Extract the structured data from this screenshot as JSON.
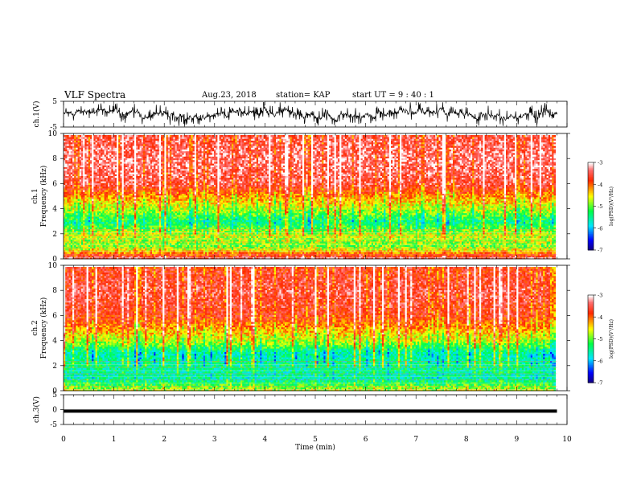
{
  "header": {
    "title": "VLF Spectra",
    "date": "Aug.23, 2018",
    "station": "station= KAP",
    "start": "start  UT  =   9 : 40 : 1"
  },
  "chart_data": [
    {
      "type": "line",
      "name": "ch1-waveform",
      "ylabel": "ch.1(V)",
      "ylim": [
        -5,
        5
      ],
      "yticks": [
        "5",
        "-5"
      ],
      "xlim": [
        0,
        10
      ],
      "data_end_min": 9.8,
      "description_values": "dense waveform oscillating roughly between -4 and +4 V"
    },
    {
      "type": "heatmap",
      "name": "ch1-spectrogram",
      "ylabel_line1": "ch.1",
      "ylabel_line2": "Frequency  (kHz)",
      "ylim": [
        0,
        10
      ],
      "yticks": [
        "0",
        "2",
        "4",
        "6",
        "8",
        "10"
      ],
      "colorbar": {
        "label": "log(PSD)(V²/Hz)",
        "range": [
          -7,
          -3
        ],
        "ticks": [
          "-3",
          "-4",
          "-5",
          "-6",
          "-7"
        ]
      },
      "levels_by_freq_kHz": [
        {
          "f": 0,
          "v": -3.3
        },
        {
          "f": 1,
          "v": -4.9
        },
        {
          "f": 2,
          "v": -4.6
        },
        {
          "f": 3,
          "v": -5.4
        },
        {
          "f": 4,
          "v": -4.7
        },
        {
          "f": 5,
          "v": -4.2
        },
        {
          "f": 6,
          "v": -3.5
        },
        {
          "f": 8,
          "v": -3.3
        },
        {
          "f": 10,
          "v": -3.5
        }
      ]
    },
    {
      "type": "heatmap",
      "name": "ch2-spectrogram",
      "ylabel_line1": "ch.2",
      "ylabel_line2": "Frequency  (kHz)",
      "ylim": [
        0,
        10
      ],
      "yticks": [
        "0",
        "2",
        "4",
        "6",
        "8",
        "10"
      ],
      "colorbar": {
        "label": "log(PSD)(V²/Hz)",
        "range": [
          -7,
          -3
        ],
        "ticks": [
          "-3",
          "-4",
          "-5",
          "-6",
          "-7"
        ]
      },
      "levels_by_freq_kHz": [
        {
          "f": 0,
          "v": -4.6
        },
        {
          "f": 1,
          "v": -5.6
        },
        {
          "f": 2,
          "v": -5.4
        },
        {
          "f": 3,
          "v": -5.6
        },
        {
          "f": 4,
          "v": -4.7
        },
        {
          "f": 5,
          "v": -4.2
        },
        {
          "f": 6,
          "v": -3.7
        },
        {
          "f": 8,
          "v": -3.5
        },
        {
          "f": 10,
          "v": -3.7
        }
      ]
    },
    {
      "type": "line",
      "name": "ch3-waveform",
      "ylabel": "ch.3(V)",
      "ylim": [
        -5,
        5
      ],
      "yticks": [
        "5",
        "0",
        "-5"
      ],
      "values_V": -0.5,
      "xlim": [
        0,
        10
      ]
    }
  ],
  "xaxis": {
    "label": "Time  (min)",
    "ticks": [
      "0",
      "1",
      "2",
      "3",
      "4",
      "5",
      "6",
      "7",
      "8",
      "9",
      "10"
    ],
    "range": [
      0,
      10
    ]
  },
  "colors": {
    "ink": "#000000",
    "colormap": [
      "#1a0080",
      "#0000ff",
      "#00e5ff",
      "#00ff40",
      "#ffff00",
      "#ff2a00",
      "#ff5a5a",
      "#ffffff"
    ]
  }
}
